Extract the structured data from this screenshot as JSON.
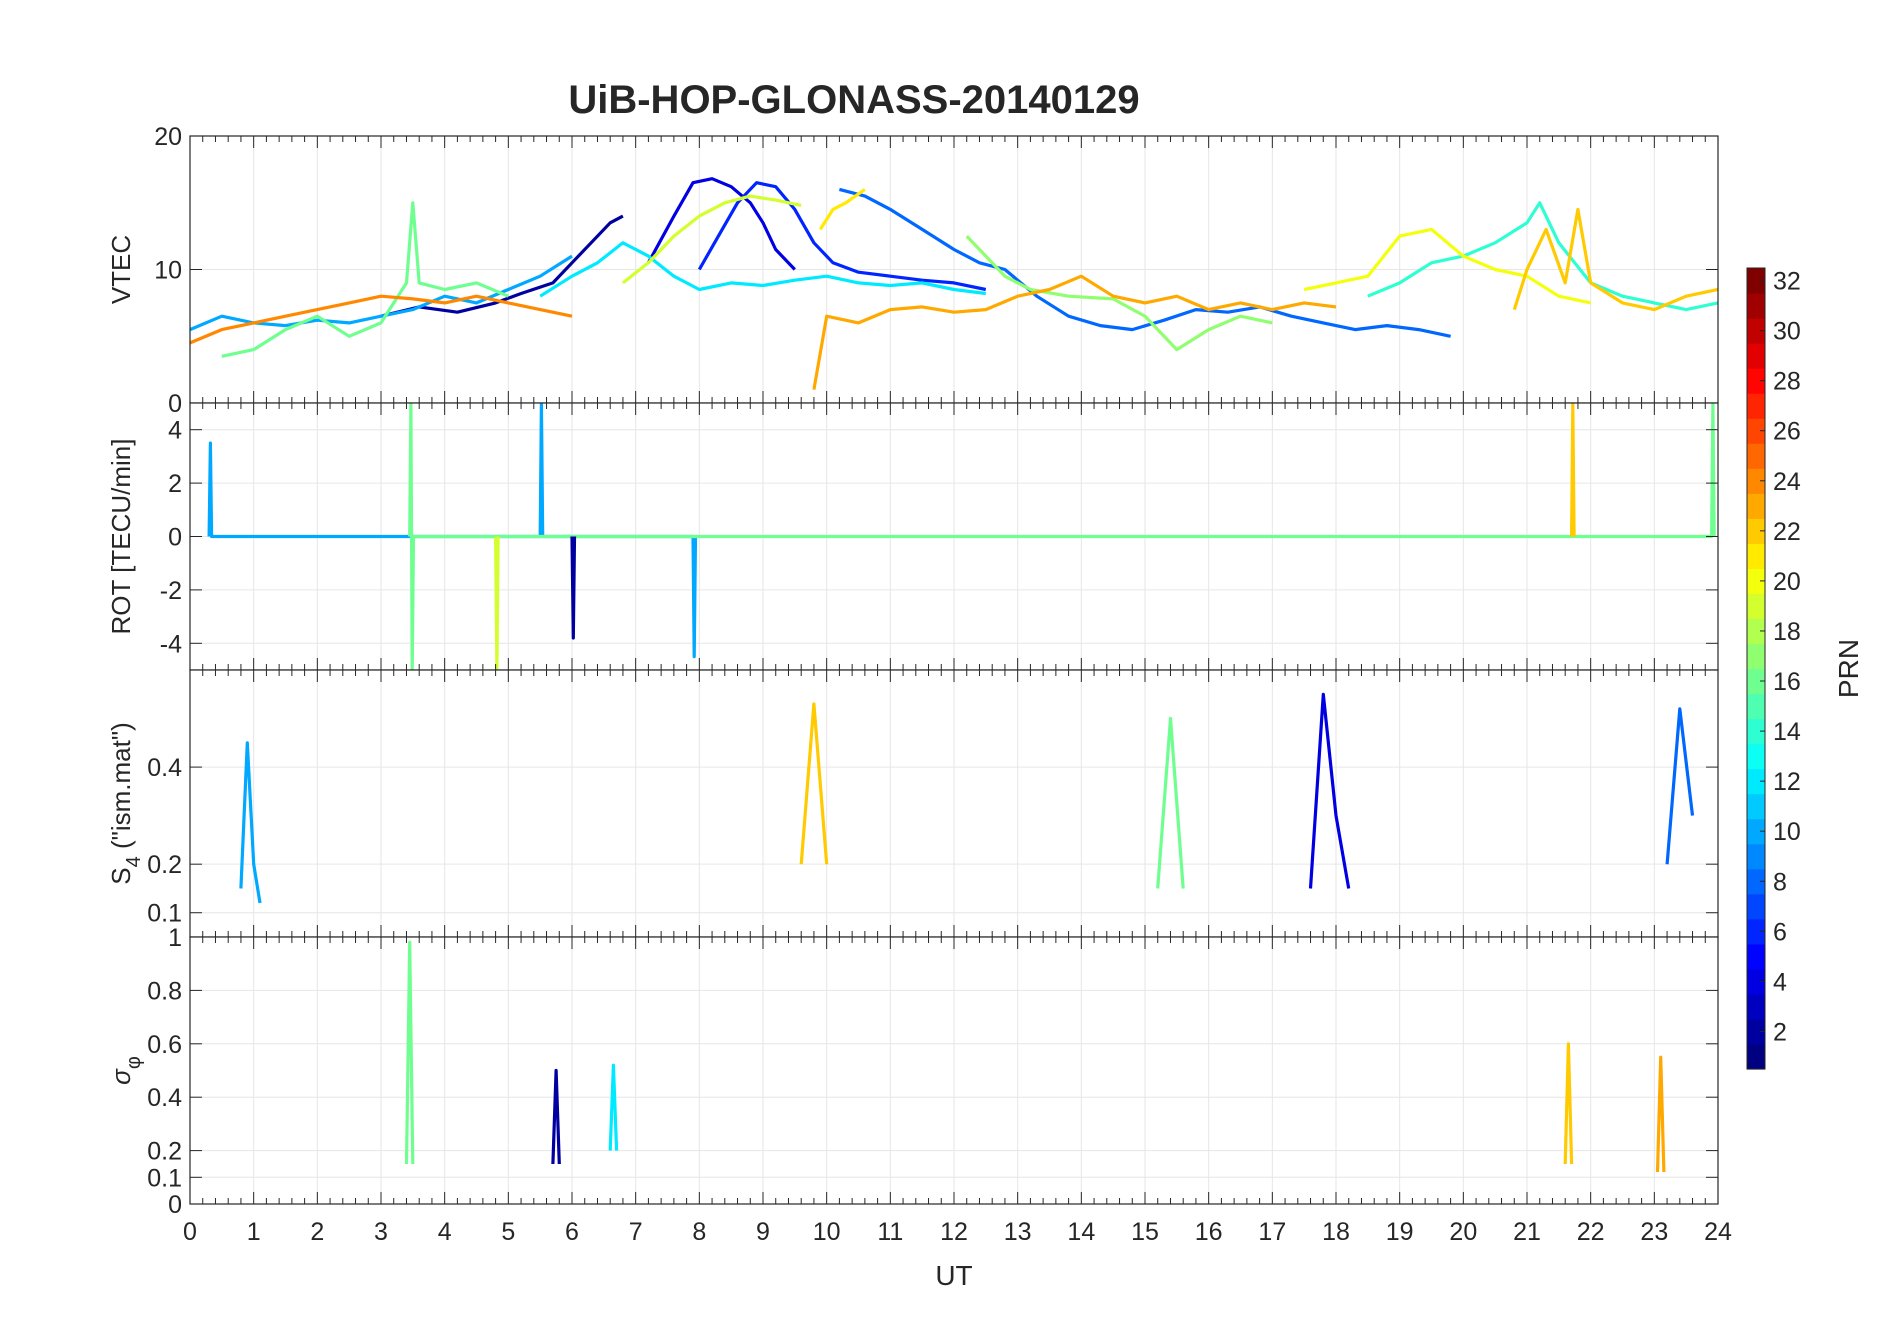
{
  "chart_data": {
    "type": "line",
    "title": "UiB-HOP-GLONASS-20140129",
    "xlabel": "UT",
    "xlim": [
      0,
      24
    ],
    "x_ticks": [
      0,
      1,
      2,
      3,
      4,
      5,
      6,
      7,
      8,
      9,
      10,
      11,
      12,
      13,
      14,
      15,
      16,
      17,
      18,
      19,
      20,
      21,
      22,
      23,
      24
    ],
    "grid": true,
    "colorbar": {
      "label": "PRN",
      "colormap": "jet",
      "range": [
        1,
        32
      ],
      "ticks": [
        2,
        4,
        6,
        8,
        10,
        12,
        14,
        16,
        18,
        20,
        22,
        24,
        26,
        28,
        30,
        32
      ]
    },
    "panels": [
      {
        "ylabel": "VTEC",
        "ylim": [
          0,
          20
        ],
        "y_ticks": [
          0,
          10,
          20
        ],
        "series": [
          {
            "name": "PRN 2",
            "prn": 2,
            "x": [
              3.0,
              3.6,
              4.2,
              4.8,
              5.2,
              5.7,
              6.0,
              6.3,
              6.6,
              6.8
            ],
            "y": [
              6.5,
              7.2,
              6.8,
              7.5,
              8.2,
              9.0,
              10.5,
              12.0,
              13.5,
              14.0
            ]
          },
          {
            "name": "PRN 4",
            "prn": 4,
            "x": [
              7.2,
              7.6,
              7.9,
              8.2,
              8.5,
              8.8,
              9.0,
              9.2,
              9.5
            ],
            "y": [
              10.5,
              14.0,
              16.5,
              16.8,
              16.2,
              15.0,
              13.5,
              11.5,
              10.0
            ]
          },
          {
            "name": "PRN 6",
            "prn": 6,
            "x": [
              8.0,
              8.3,
              8.6,
              8.9,
              9.2,
              9.5,
              9.8,
              10.1,
              10.5,
              11.0,
              11.5,
              12.0,
              12.5
            ],
            "y": [
              10.0,
              12.5,
              15.0,
              16.5,
              16.2,
              14.5,
              12.0,
              10.5,
              9.8,
              9.5,
              9.2,
              9.0,
              8.5
            ]
          },
          {
            "name": "PRN 8",
            "prn": 8,
            "x": [
              10.2,
              10.6,
              11.0,
              11.5,
              12.0,
              12.4,
              12.8,
              13.3,
              13.8,
              14.3,
              14.8,
              15.3,
              15.8,
              16.3,
              16.8,
              17.3,
              17.8,
              18.3,
              18.8,
              19.3,
              19.8
            ],
            "y": [
              16.0,
              15.5,
              14.5,
              13.0,
              11.5,
              10.5,
              10.0,
              8.0,
              6.5,
              5.8,
              5.5,
              6.2,
              7.0,
              6.8,
              7.2,
              6.5,
              6.0,
              5.5,
              5.8,
              5.5,
              5.0
            ]
          },
          {
            "name": "PRN 10",
            "prn": 10,
            "x": [
              0.0,
              0.5,
              1.0,
              1.5,
              2.0,
              2.5,
              3.0,
              3.5,
              4.0,
              4.5,
              5.0,
              5.5,
              6.0
            ],
            "y": [
              5.5,
              6.5,
              6.0,
              5.8,
              6.2,
              6.0,
              6.5,
              7.0,
              8.0,
              7.5,
              8.5,
              9.5,
              11.0
            ]
          },
          {
            "name": "PRN 12",
            "prn": 12,
            "x": [
              5.5,
              6.0,
              6.4,
              6.8,
              7.2,
              7.6,
              8.0,
              8.5,
              9.0,
              9.5,
              10.0,
              10.5,
              11.0,
              11.5,
              12.0,
              12.5
            ],
            "y": [
              8.0,
              9.5,
              10.5,
              12.0,
              11.0,
              9.5,
              8.5,
              9.0,
              8.8,
              9.2,
              9.5,
              9.0,
              8.8,
              9.0,
              8.5,
              8.2
            ]
          },
          {
            "name": "PRN 14",
            "prn": 14,
            "x": [
              18.5,
              19.0,
              19.5,
              20.0,
              20.5,
              21.0,
              21.2,
              21.5,
              22.0,
              22.5,
              23.0,
              23.5,
              24.0
            ],
            "y": [
              8.0,
              9.0,
              10.5,
              11.0,
              12.0,
              13.5,
              15.0,
              12.0,
              9.0,
              8.0,
              7.5,
              7.0,
              7.5
            ]
          },
          {
            "name": "PRN 16",
            "prn": 16,
            "x": [
              0.5,
              1.0,
              1.5,
              2.0,
              2.5,
              3.0,
              3.4,
              3.5,
              3.6,
              4.0,
              4.5,
              5.0
            ],
            "y": [
              3.5,
              4.0,
              5.5,
              6.5,
              5.0,
              6.0,
              9.0,
              15.0,
              9.0,
              8.5,
              9.0,
              8.0
            ]
          },
          {
            "name": "PRN 17",
            "prn": 17,
            "x": [
              12.2,
              12.5,
              12.8,
              13.2,
              13.8,
              14.5,
              15.0,
              15.5,
              16.0,
              16.5,
              17.0
            ],
            "y": [
              12.5,
              11.0,
              9.5,
              8.5,
              8.0,
              7.8,
              6.5,
              4.0,
              5.5,
              6.5,
              6.0
            ]
          },
          {
            "name": "PRN 19",
            "prn": 19,
            "x": [
              6.8,
              7.2,
              7.6,
              8.0,
              8.4,
              8.8,
              9.2,
              9.6
            ],
            "y": [
              9.0,
              10.5,
              12.5,
              14.0,
              15.0,
              15.5,
              15.2,
              14.8
            ]
          },
          {
            "name": "PRN 20",
            "prn": 20,
            "x": [
              17.5,
              18.0,
              18.5,
              19.0,
              19.5,
              20.0,
              20.5,
              21.0,
              21.5,
              22.0
            ],
            "y": [
              8.5,
              9.0,
              9.5,
              12.5,
              13.0,
              11.0,
              10.0,
              9.5,
              8.0,
              7.5
            ]
          },
          {
            "name": "PRN 21",
            "prn": 21,
            "x": [
              9.9,
              10.1,
              10.3,
              10.6
            ],
            "y": [
              13.0,
              14.5,
              15.0,
              16.0
            ]
          },
          {
            "name": "PRN 23",
            "prn": 23,
            "x": [
              9.8,
              10.0,
              10.5,
              11.0,
              11.5,
              12.0,
              12.5,
              13.0,
              13.5,
              14.0,
              14.5,
              15.0,
              15.5,
              16.0,
              16.5,
              17.0,
              17.5,
              18.0
            ],
            "y": [
              1.0,
              6.5,
              6.0,
              7.0,
              7.2,
              6.8,
              7.0,
              8.0,
              8.5,
              9.5,
              8.0,
              7.5,
              8.0,
              7.0,
              7.5,
              7.0,
              7.5,
              7.2
            ]
          },
          {
            "name": "PRN 24",
            "prn": 24,
            "x": [
              0.0,
              0.5,
              1.0,
              1.5,
              2.0,
              2.5,
              3.0,
              3.5,
              4.0,
              4.5,
              5.0,
              5.5,
              6.0
            ],
            "y": [
              4.5,
              5.5,
              6.0,
              6.5,
              7.0,
              7.5,
              8.0,
              7.8,
              7.5,
              8.0,
              7.5,
              7.0,
              6.5
            ]
          },
          {
            "name": "PRN 22",
            "prn": 22,
            "x": [
              20.8,
              21.0,
              21.3,
              21.6,
              21.8,
              22.0,
              22.5,
              23.0,
              23.5,
              24.0
            ],
            "y": [
              7.0,
              10.0,
              13.0,
              9.0,
              14.5,
              9.0,
              7.5,
              7.0,
              8.0,
              8.5
            ]
          }
        ]
      },
      {
        "ylabel": "ROT [TECU/min]",
        "ylim": [
          -5,
          5
        ],
        "y_ticks": [
          -4,
          -2,
          0,
          2,
          4
        ],
        "series": [
          {
            "name": "PRN 10",
            "prn": 10,
            "x": [
              0.3,
              0.32,
              0.34,
              5.5,
              5.52,
              5.54,
              7.9,
              7.92,
              7.94
            ],
            "y": [
              0,
              3.5,
              0,
              0,
              5,
              0,
              0,
              -4.5,
              0
            ]
          },
          {
            "name": "PRN 16",
            "prn": 16,
            "x": [
              3.45,
              3.47,
              3.49,
              3.51,
              23.9,
              23.92,
              23.94
            ],
            "y": [
              0,
              5,
              -5,
              0,
              0,
              5,
              0
            ]
          },
          {
            "name": "PRN 19",
            "prn": 19,
            "x": [
              4.8,
              4.82,
              4.84
            ],
            "y": [
              0,
              -5,
              0
            ]
          },
          {
            "name": "PRN 22",
            "prn": 22,
            "x": [
              21.7,
              21.72,
              21.74
            ],
            "y": [
              0,
              5,
              0
            ]
          },
          {
            "name": "PRN 2",
            "prn": 2,
            "x": [
              6.0,
              6.02,
              6.04
            ],
            "y": [
              0,
              -3.8,
              0
            ]
          }
        ]
      },
      {
        "ylabel": "S4 (\"ism.mat\")",
        "ylabel_main": "S",
        "ylabel_sub": "4",
        "ylabel_rest": " (\"ism.mat\")",
        "ylim": [
          0.05,
          0.6
        ],
        "y_ticks": [
          0.1,
          0.2,
          0.4
        ],
        "series": [
          {
            "name": "PRN 4",
            "prn": 4,
            "x": [
              17.6,
              17.8,
              18.0,
              18.2
            ],
            "y": [
              0.15,
              0.55,
              0.3,
              0.15
            ]
          },
          {
            "name": "PRN 10",
            "prn": 10,
            "x": [
              0.8,
              0.9,
              1.0,
              1.1
            ],
            "y": [
              0.15,
              0.45,
              0.2,
              0.12
            ]
          },
          {
            "name": "PRN 22",
            "prn": 22,
            "x": [
              9.6,
              9.8,
              10.0
            ],
            "y": [
              0.2,
              0.53,
              0.2
            ]
          },
          {
            "name": "PRN 16",
            "prn": 16,
            "x": [
              15.2,
              15.4,
              15.6
            ],
            "y": [
              0.15,
              0.5,
              0.15
            ]
          },
          {
            "name": "PRN 8",
            "prn": 8,
            "x": [
              23.2,
              23.4,
              23.6
            ],
            "y": [
              0.2,
              0.52,
              0.3
            ]
          }
        ]
      },
      {
        "ylabel": "σφ",
        "ylabel_main": "σ",
        "ylabel_sub": "φ",
        "ylim": [
          0,
          1
        ],
        "y_ticks": [
          0,
          0.1,
          0.2,
          0.4,
          0.6,
          0.8
        ],
        "top_label": "1",
        "series": [
          {
            "name": "PRN 16",
            "prn": 16,
            "x": [
              3.4,
              3.45,
              3.5
            ],
            "y": [
              0.15,
              0.98,
              0.15
            ]
          },
          {
            "name": "PRN 22",
            "prn": 22,
            "x": [
              21.6,
              21.65,
              21.7
            ],
            "y": [
              0.15,
              0.6,
              0.15
            ]
          },
          {
            "name": "PRN 23",
            "prn": 23,
            "x": [
              23.05,
              23.1,
              23.15
            ],
            "y": [
              0.12,
              0.55,
              0.12
            ]
          },
          {
            "name": "PRN 2",
            "prn": 2,
            "x": [
              5.7,
              5.75,
              5.8
            ],
            "y": [
              0.15,
              0.5,
              0.15
            ]
          },
          {
            "name": "PRN 12",
            "prn": 12,
            "x": [
              6.6,
              6.65,
              6.7
            ],
            "y": [
              0.2,
              0.52,
              0.2
            ]
          }
        ]
      }
    ]
  }
}
